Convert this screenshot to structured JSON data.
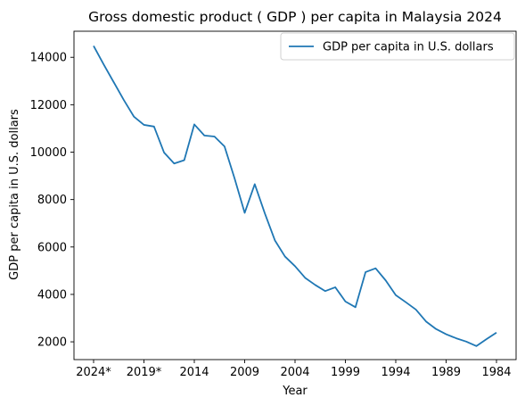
{
  "chart_data": {
    "type": "line",
    "title": "Gross domestic product ( GDP ) per capita in Malaysia 2024",
    "xlabel": "Year",
    "ylabel": "GDP per capita in U.S. dollars",
    "x": [
      "2024*",
      "2023*",
      "2022*",
      "2021*",
      "2020*",
      "2019*",
      "2018",
      "2017",
      "2016",
      "2015",
      "2014",
      "2013",
      "2012",
      "2011",
      "2010",
      "2009",
      "2008",
      "2007",
      "2006",
      "2005",
      "2004",
      "2003",
      "2002",
      "2001",
      "2000",
      "1999",
      "1998",
      "1997",
      "1996",
      "1995",
      "1994",
      "1993",
      "1992",
      "1991",
      "1990",
      "1989",
      "1988",
      "1987",
      "1986",
      "1985",
      "1984"
    ],
    "x_tick_labels": [
      "2024*",
      "2019*",
      "2014",
      "2009",
      "2004",
      "1999",
      "1994",
      "1989",
      "1984"
    ],
    "series": [
      {
        "name": "GDP per capita in U.S. dollars",
        "color": "#1f77b4",
        "values": [
          14480,
          13700,
          12950,
          12200,
          11500,
          11150,
          11080,
          9980,
          9520,
          9660,
          11170,
          10700,
          10660,
          10240,
          8890,
          7440,
          8650,
          7420,
          6280,
          5600,
          5190,
          4700,
          4400,
          4140,
          4300,
          3700,
          3460,
          4940,
          5100,
          4590,
          3970,
          3670,
          3360,
          2860,
          2540,
          2320,
          2150,
          2010,
          1820,
          2110,
          2390
        ]
      }
    ],
    "ylim": [
      1250,
      15100
    ],
    "y_ticks": [
      2000,
      4000,
      6000,
      8000,
      10000,
      12000,
      14000
    ],
    "legend": {
      "placement": "top-right",
      "entries": [
        "GDP per capita in U.S. dollars"
      ]
    },
    "grid": false
  }
}
